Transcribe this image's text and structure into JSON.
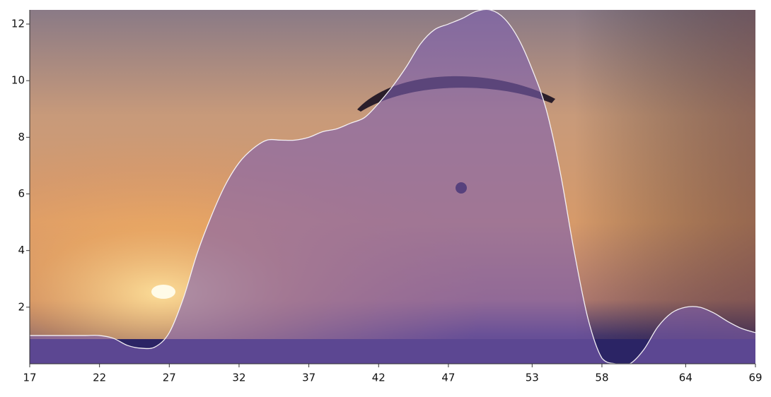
{
  "chart_data": {
    "type": "area",
    "x": [
      17,
      18,
      19,
      20,
      21,
      22,
      23,
      24,
      25,
      26,
      27,
      28,
      29,
      30,
      31,
      32,
      33,
      34,
      35,
      36,
      37,
      38,
      39,
      40,
      41,
      42,
      43,
      44,
      45,
      46,
      47,
      48,
      49,
      50,
      51,
      52,
      53,
      54,
      55,
      56,
      57,
      58,
      59,
      60,
      61,
      62,
      63,
      64,
      65,
      66,
      67,
      68,
      69
    ],
    "series": [
      {
        "color": "#7d5fb0",
        "values": [
          1.0,
          1.0,
          1.0,
          1.0,
          1.0,
          1.0,
          0.9,
          0.65,
          0.55,
          0.6,
          1.1,
          2.3,
          3.9,
          5.2,
          6.3,
          7.1,
          7.6,
          7.9,
          7.9,
          7.9,
          8.0,
          8.2,
          8.3,
          8.5,
          8.7,
          9.2,
          9.8,
          10.5,
          11.3,
          11.8,
          12.0,
          12.2,
          12.45,
          12.5,
          12.2,
          11.5,
          10.4,
          9.0,
          6.8,
          4.0,
          1.6,
          0.2,
          0,
          0,
          0.5,
          1.3,
          1.8,
          2.0,
          2.0,
          1.8,
          1.5,
          1.25,
          1.1
        ]
      }
    ],
    "xlim": [
      17,
      69
    ],
    "xticks": [
      17,
      22,
      27,
      32,
      37,
      42,
      47,
      53,
      58,
      64,
      69
    ],
    "ylim": [
      0,
      12.5
    ],
    "yticks": [
      2,
      4,
      6,
      8,
      10,
      12
    ]
  }
}
